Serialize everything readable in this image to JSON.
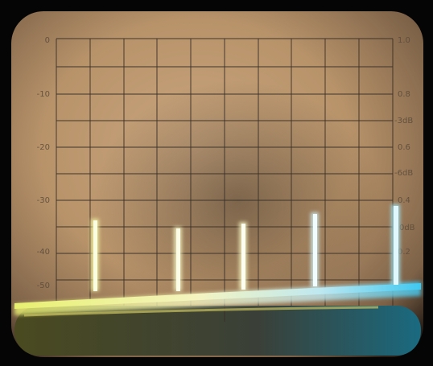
{
  "scale_left": [
    "0",
    "-10",
    "-20",
    "-30",
    "-40",
    "-50"
  ],
  "scale_right": [
    "1.0",
    "0.8",
    "-3dB",
    "0.6",
    "-6dB",
    "0.4",
    "-10dB",
    "0.2"
  ]
}
